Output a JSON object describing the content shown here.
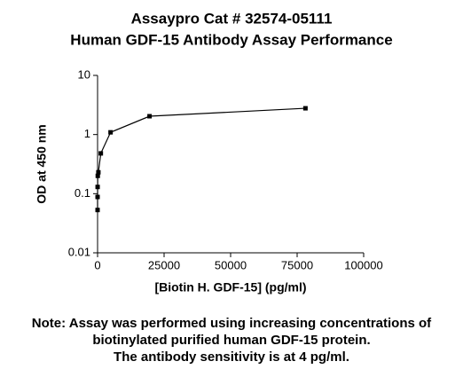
{
  "chart_data": {
    "type": "line",
    "title": [
      "Assaypro Cat # 32574-05111",
      "Human GDF-15 Antibody Assay Performance"
    ],
    "x_label": "[Biotin H. GDF-15] (pg/ml)",
    "y_label": "OD at 450 nm",
    "note": [
      "Note: Assay was performed using increasing concentrations of",
      "biotinylated purified human GDF-15 protein.",
      "The antibody sensitivity is at 4 pg/ml."
    ],
    "x": [
      0,
      4.8,
      19.1,
      76.3,
      305.2,
      1220.7,
      4882.8,
      19531.25,
      78125
    ],
    "series": [
      {
        "color": "#000000",
        "values": [
          0.053,
          0.088,
          0.13,
          0.2,
          0.23,
          0.48,
          1.09,
          2.04,
          2.78
        ]
      }
    ],
    "xlim": [
      0,
      100000
    ],
    "xticks": [
      0,
      25000,
      50000,
      75000,
      100000
    ],
    "ylim": [
      0.01,
      10
    ],
    "yticks": [
      0.01,
      0.1,
      1,
      10
    ],
    "y_log": true
  }
}
